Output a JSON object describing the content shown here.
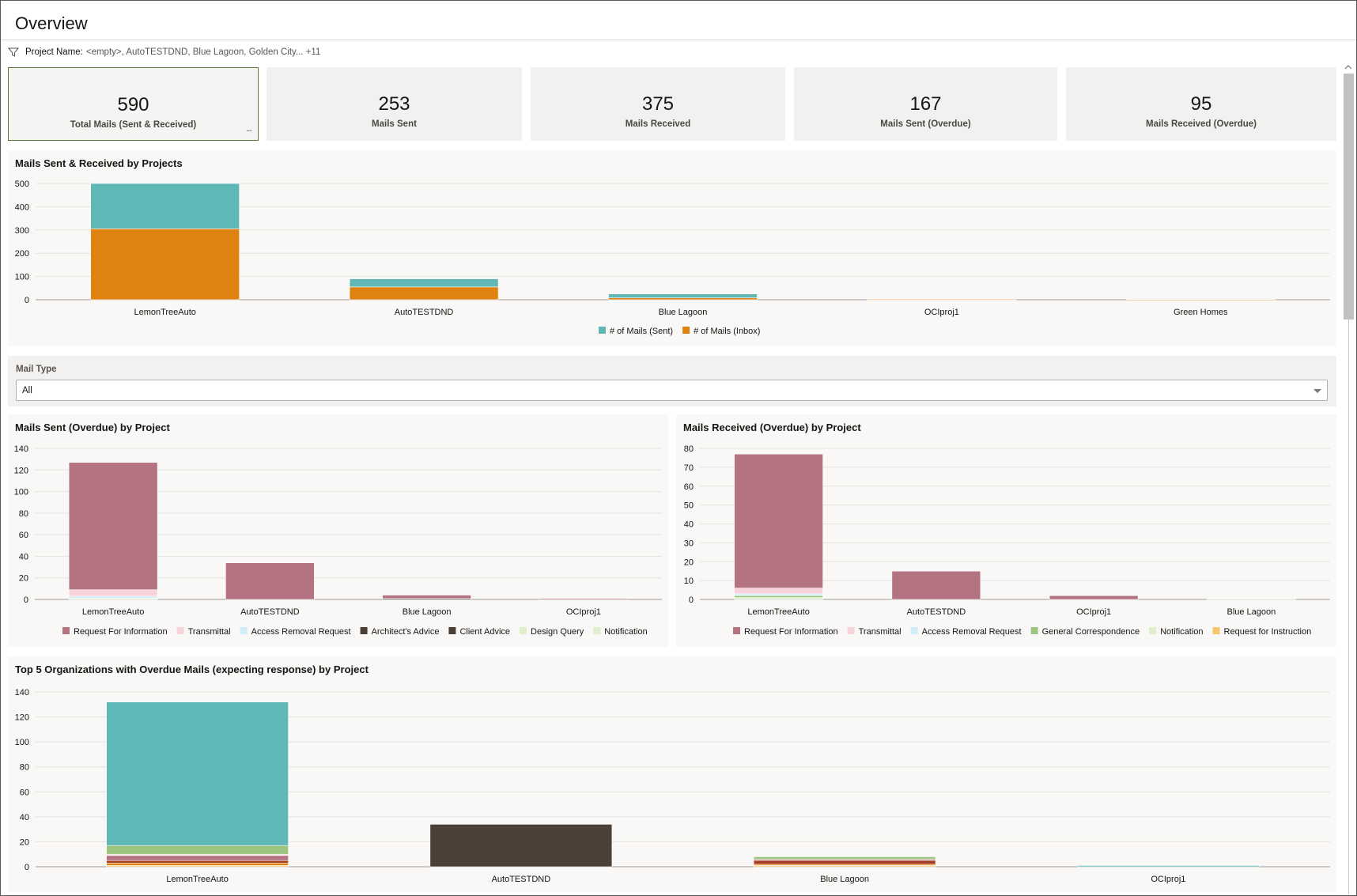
{
  "page": {
    "title": "Overview"
  },
  "filter": {
    "label": "Project Name:",
    "value": "<empty>, AutoTESTDND, Blue Lagoon, Golden City... +11",
    "icon": "filter-icon"
  },
  "kpis": [
    {
      "value": "590",
      "label": "Total Mails (Sent & Received)",
      "more": "..."
    },
    {
      "value": "253",
      "label": "Mails Sent"
    },
    {
      "value": "375",
      "label": "Mails Received"
    },
    {
      "value": "167",
      "label": "Mails Sent (Overdue)"
    },
    {
      "value": "95",
      "label": "Mails Received (Overdue)"
    }
  ],
  "mail_type": {
    "label": "Mail Type",
    "selected": "All"
  },
  "colors": {
    "sent": "#5fb8b5",
    "inbox": "#e08212",
    "rfi": "#b37380",
    "transmittal": "#f7d4dc",
    "access_removal": "#d1edf5",
    "architects_advice": "#4b3f37",
    "client_advice": "#4b3f37",
    "design_query": "#dfeecb",
    "notification": "#dfeecb",
    "general_correspondence": "#9cc580",
    "request_instruction": "#f5c76a"
  },
  "chart_data": [
    {
      "id": "sent_received",
      "type": "bar",
      "title": "Mails Sent & Received by Projects",
      "categories": [
        "LemonTreeAuto",
        "AutoTESTDND",
        "Blue Lagoon",
        "OCIproj1",
        "Green Homes"
      ],
      "stacked": true,
      "ylim": [
        0,
        500
      ],
      "yticks": [
        0,
        100,
        200,
        300,
        400,
        500
      ],
      "series": [
        {
          "name": "# of Mails (Inbox)",
          "color": "#e08212",
          "values": [
            305,
            55,
            8,
            2,
            1
          ]
        },
        {
          "name": "# of Mails (Sent)",
          "color": "#5fb8b5",
          "values": [
            195,
            35,
            17,
            0,
            0
          ]
        }
      ],
      "legend": [
        "# of Mails (Sent)",
        "# of Mails (Inbox)"
      ],
      "grid": true,
      "legend_position": "bottom"
    },
    {
      "id": "sent_overdue",
      "type": "bar",
      "title": "Mails Sent (Overdue) by Project",
      "categories": [
        "LemonTreeAuto",
        "AutoTESTDND",
        "Blue Lagoon",
        "OCIproj1"
      ],
      "stacked": true,
      "ylim": [
        0,
        140
      ],
      "yticks": [
        0,
        20,
        40,
        60,
        80,
        100,
        120,
        140
      ],
      "series": [
        {
          "name": "Notification",
          "color": "#dfeecb",
          "values": [
            1,
            0,
            0,
            0
          ]
        },
        {
          "name": "Design Query",
          "color": "#dfeecb",
          "values": [
            0,
            0,
            0,
            0
          ]
        },
        {
          "name": "Client Advice",
          "color": "#4b3f37",
          "values": [
            0,
            0,
            0,
            0
          ]
        },
        {
          "name": "Architect's Advice",
          "color": "#4b3f37",
          "values": [
            0,
            0,
            1,
            0
          ]
        },
        {
          "name": "Access Removal Request",
          "color": "#d1edf5",
          "values": [
            2,
            0,
            0,
            0
          ]
        },
        {
          "name": "Transmittal",
          "color": "#f7d4dc",
          "values": [
            6,
            0,
            0,
            0
          ]
        },
        {
          "name": "Request For Information",
          "color": "#b37380",
          "values": [
            118,
            34,
            3,
            1
          ]
        }
      ],
      "legend": [
        "Request For Information",
        "Transmittal",
        "Access Removal Request",
        "Architect's Advice",
        "Client Advice",
        "Design Query",
        "Notification"
      ],
      "grid": true,
      "legend_position": "bottom"
    },
    {
      "id": "received_overdue",
      "type": "bar",
      "title": "Mails Received (Overdue) by Project",
      "categories": [
        "LemonTreeAuto",
        "AutoTESTDND",
        "OCIproj1",
        "Blue Lagoon"
      ],
      "stacked": true,
      "ylim": [
        0,
        80
      ],
      "yticks": [
        0,
        10,
        20,
        30,
        40,
        50,
        60,
        70,
        80
      ],
      "series": [
        {
          "name": "Notification",
          "color": "#dfeecb",
          "values": [
            1,
            0,
            0,
            0.5
          ]
        },
        {
          "name": "General Correspondence",
          "color": "#9cc580",
          "values": [
            1,
            0,
            0,
            0
          ]
        },
        {
          "name": "Access Removal Request",
          "color": "#d1edf5",
          "values": [
            1,
            0,
            0,
            0
          ]
        },
        {
          "name": "Transmittal",
          "color": "#f7d4dc",
          "values": [
            3,
            0,
            0,
            0
          ]
        },
        {
          "name": "Request For Information",
          "color": "#b37380",
          "values": [
            71,
            15,
            2,
            0
          ]
        },
        {
          "name": "Request for Instruction",
          "color": "#f5c76a",
          "values": [
            0,
            0,
            0,
            0
          ]
        }
      ],
      "legend": [
        "Request For Information",
        "Transmittal",
        "Access Removal Request",
        "General Correspondence",
        "Notification",
        "Request for Instruction"
      ],
      "grid": true,
      "legend_position": "bottom"
    },
    {
      "id": "top5_orgs",
      "type": "bar",
      "title": "Top 5 Organizations with Overdue Mails (expecting response) by Project",
      "categories": [
        "LemonTreeAuto",
        "AutoTESTDND",
        "Blue Lagoon",
        "OCIproj1"
      ],
      "stacked": true,
      "ylim": [
        0,
        140
      ],
      "yticks": [
        0,
        20,
        40,
        60,
        80,
        100,
        120,
        140
      ],
      "series": [
        {
          "name": "",
          "color": "#f5c76a",
          "values": [
            1,
            0,
            1,
            0
          ]
        },
        {
          "name": "",
          "color": "#e08212",
          "values": [
            2,
            0,
            1,
            0
          ]
        },
        {
          "name": "",
          "color": "#a63a1c",
          "values": [
            2,
            0,
            3,
            0
          ]
        },
        {
          "name": "",
          "color": "#4b3f37",
          "values": [
            0,
            34,
            0,
            0
          ]
        },
        {
          "name": "",
          "color": "#b37380",
          "values": [
            4,
            0,
            1,
            0
          ]
        },
        {
          "name": "",
          "color": "#f7d4dc",
          "values": [
            1,
            0,
            0,
            0
          ]
        },
        {
          "name": "",
          "color": "#9cc580",
          "values": [
            7,
            0,
            2,
            0
          ]
        },
        {
          "name": "",
          "color": "#5fb8b5",
          "values": [
            115,
            0,
            0,
            1
          ]
        }
      ],
      "grid": true
    }
  ]
}
